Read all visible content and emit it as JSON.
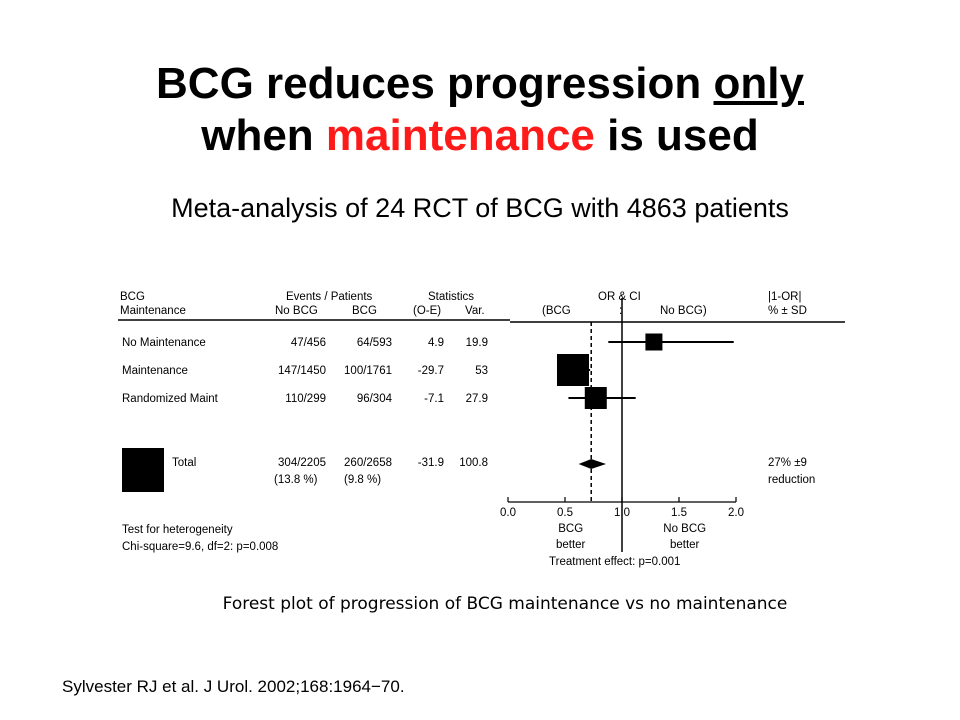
{
  "slide": {
    "title_a": "BCG reduces progression ",
    "title_only": "only",
    "title_b": "when ",
    "title_maint": "maintenance",
    "title_c": " is used",
    "subtitle": "Meta-analysis of 24 RCT of BCG with 4863 patients",
    "caption": "Forest plot of progression of BCG maintenance vs no maintenance",
    "citation": "Sylvester RJ et al. J Urol. 2002;168:1964−70.",
    "colors": {
      "highlight": "#ff1a1a",
      "text": "#000000"
    }
  },
  "chart_data": {
    "type": "forest",
    "headers": {
      "group_line1": "BCG",
      "group_line2": "Maintenance",
      "events_title": "Events / Patients",
      "col_nobcg": "No BCG",
      "col_bcg": "BCG",
      "stats_title": "Statistics",
      "col_oe": "(O-E)",
      "col_var": "Var.",
      "orci_title": "OR & CI",
      "orci_left": "(BCG",
      "orci_mid": ":",
      "orci_right": "No BCG)",
      "red_title": "|1-OR|",
      "red_sub": "% ± SD"
    },
    "rows": [
      {
        "label": "No Maintenance",
        "no_bcg": "47/456",
        "bcg": "64/593",
        "oe": "4.9",
        "var": "19.9",
        "or": 1.28,
        "ci": [
          0.88,
          1.98
        ]
      },
      {
        "label": "Maintenance",
        "no_bcg": "147/1450",
        "bcg": "100/1761",
        "oe": "-29.7",
        "var": "53",
        "or": 0.57,
        "ci": [
          0.45,
          0.72
        ]
      },
      {
        "label": "Randomized Maint",
        "no_bcg": "110/299",
        "bcg": "96/304",
        "oe": "-7.1",
        "var": "27.9",
        "or": 0.77,
        "ci": [
          0.53,
          1.12
        ]
      }
    ],
    "total": {
      "label": "Total",
      "no_bcg": "304/2205",
      "bcg": "260/2658",
      "no_bcg_pct": "(13.8 %)",
      "bcg_pct": "(9.8 %)",
      "oe": "-31.9",
      "var": "100.8",
      "or": 0.73,
      "ci": [
        0.62,
        0.86
      ],
      "reduction": "27% ±9",
      "reduction_word": "reduction"
    },
    "x_axis": {
      "ticks": [
        "0.0",
        "0.5",
        "1.0",
        "1.5",
        "2.0"
      ],
      "range": [
        0,
        2
      ]
    },
    "reference_line": 1.0,
    "pooled_line": 0.73,
    "favors_left": [
      "BCG",
      "better"
    ],
    "favors_right": [
      "No BCG",
      "better"
    ],
    "treatment_effect": "Treatment effect: p=0.001",
    "heterogeneity_title": "Test for heterogeneity",
    "heterogeneity": "Chi-square=9.6, df=2: p=0.008"
  }
}
